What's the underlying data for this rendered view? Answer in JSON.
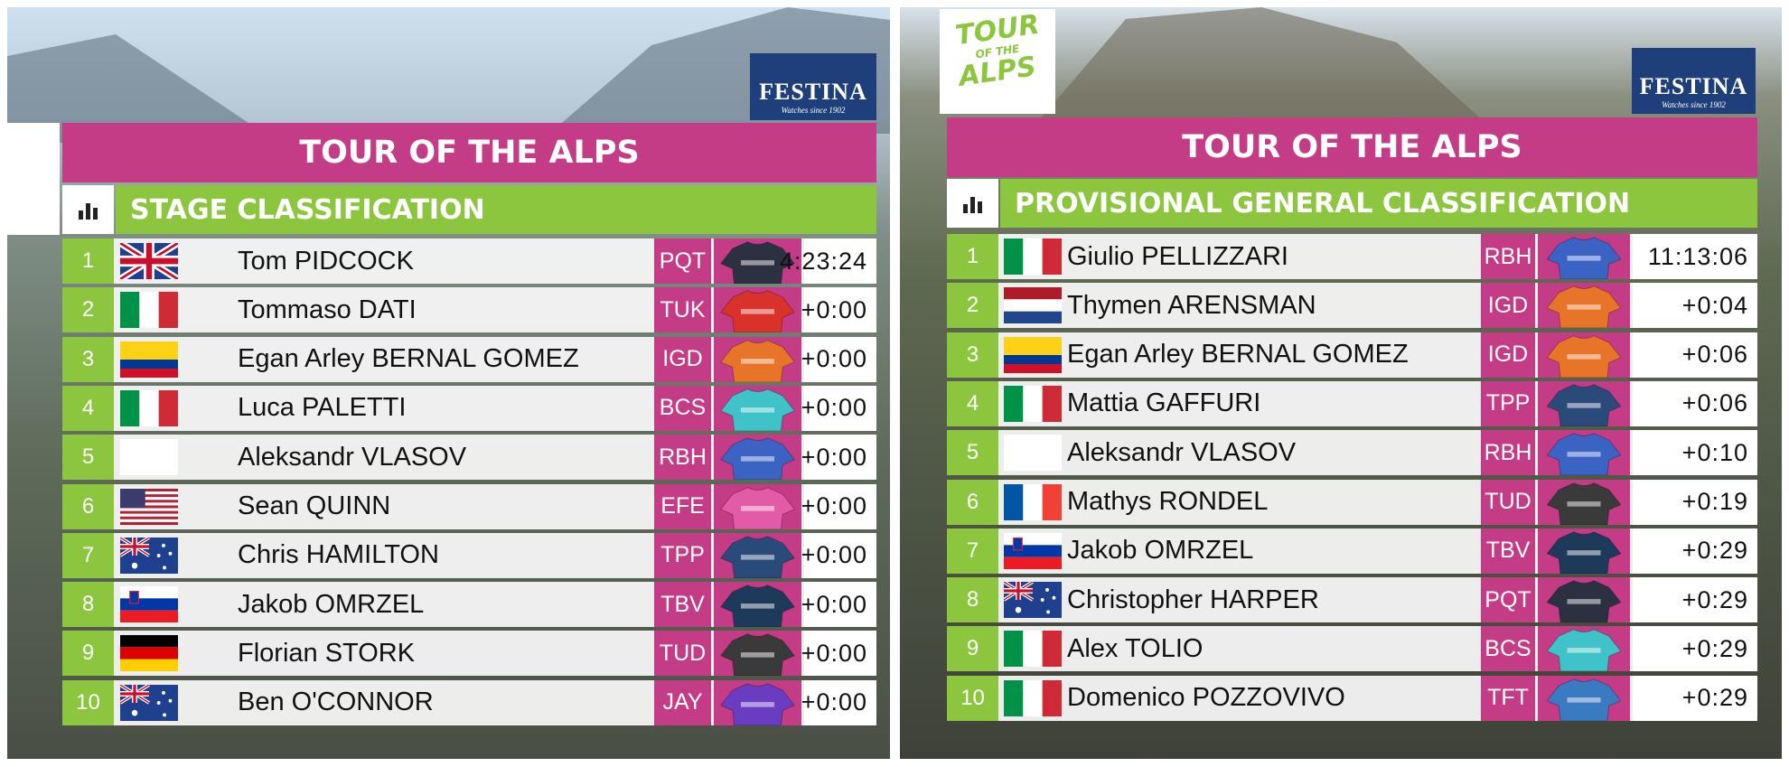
{
  "panels": [
    {
      "sponsor": {
        "name": "FESTINA",
        "tagline": "Watches since 1902"
      },
      "title": "TOUR OF THE ALPS",
      "subtitle": "STAGE CLASSIFICATION",
      "rows": [
        {
          "rank": "1",
          "flag": "gb",
          "name": "Tom PIDCOCK",
          "team": "PQT",
          "jersey": "#2b3140",
          "time": "4:23:24"
        },
        {
          "rank": "2",
          "flag": "it",
          "name": "Tommaso DATI",
          "team": "TUK",
          "jersey": "#d8322a",
          "time": "+0:00"
        },
        {
          "rank": "3",
          "flag": "co",
          "name": "Egan Arley BERNAL GOMEZ",
          "team": "IGD",
          "jersey": "#e8742a",
          "time": "+0:00"
        },
        {
          "rank": "4",
          "flag": "it",
          "name": "Luca PALETTI",
          "team": "BCS",
          "jersey": "#3fc3c9",
          "time": "+0:00"
        },
        {
          "rank": "5",
          "flag": null,
          "name": "Aleksandr VLASOV",
          "team": "RBH",
          "jersey": "#3b63c4",
          "time": "+0:00"
        },
        {
          "rank": "6",
          "flag": "us",
          "name": "Sean QUINN",
          "team": "EFE",
          "jersey": "#e35aa6",
          "time": "+0:00"
        },
        {
          "rank": "7",
          "flag": "au",
          "name": "Chris HAMILTON",
          "team": "TPP",
          "jersey": "#2a4a7a",
          "time": "+0:00"
        },
        {
          "rank": "8",
          "flag": "si",
          "name": "Jakob OMRZEL",
          "team": "TBV",
          "jersey": "#1e3a5a",
          "time": "+0:00"
        },
        {
          "rank": "9",
          "flag": "de",
          "name": "Florian STORK",
          "team": "TUD",
          "jersey": "#3a3a3a",
          "time": "+0:00"
        },
        {
          "rank": "10",
          "flag": "au",
          "name": "Ben O'CONNOR",
          "team": "JAY",
          "jersey": "#6a3cc0",
          "time": "+0:00"
        }
      ]
    },
    {
      "logo": [
        "TOUR",
        "OF THE",
        "ALPS"
      ],
      "sponsor": {
        "name": "FESTINA",
        "tagline": "Watches since 1902"
      },
      "title": "TOUR OF THE ALPS",
      "subtitle": "PROVISIONAL GENERAL CLASSIFICATION",
      "rows": [
        {
          "rank": "1",
          "flag": "it",
          "name": "Giulio PELLIZZARI",
          "team": "RBH",
          "jersey": "#3b63c4",
          "time": "11:13:06"
        },
        {
          "rank": "2",
          "flag": "nl",
          "name": "Thymen ARENSMAN",
          "team": "IGD",
          "jersey": "#e8742a",
          "time": "+0:04"
        },
        {
          "rank": "3",
          "flag": "co",
          "name": "Egan Arley BERNAL GOMEZ",
          "team": "IGD",
          "jersey": "#e8742a",
          "time": "+0:06"
        },
        {
          "rank": "4",
          "flag": "it",
          "name": "Mattia GAFFURI",
          "team": "TPP",
          "jersey": "#2a4a7a",
          "time": "+0:06"
        },
        {
          "rank": "5",
          "flag": null,
          "name": "Aleksandr VLASOV",
          "team": "RBH",
          "jersey": "#3b63c4",
          "time": "+0:10"
        },
        {
          "rank": "6",
          "flag": "fr",
          "name": "Mathys RONDEL",
          "team": "TUD",
          "jersey": "#3a3a3a",
          "time": "+0:19"
        },
        {
          "rank": "7",
          "flag": "si",
          "name": "Jakob OMRZEL",
          "team": "TBV",
          "jersey": "#1e3a5a",
          "time": "+0:29"
        },
        {
          "rank": "8",
          "flag": "au",
          "name": "Christopher HARPER",
          "team": "PQT",
          "jersey": "#2b3140",
          "time": "+0:29"
        },
        {
          "rank": "9",
          "flag": "it",
          "name": "Alex TOLIO",
          "team": "BCS",
          "jersey": "#3fc3c9",
          "time": "+0:29"
        },
        {
          "rank": "10",
          "flag": "it",
          "name": "Domenico POZZOVIVO",
          "team": "TFT",
          "jersey": "#3a7ac0",
          "time": "+0:29"
        }
      ]
    }
  ]
}
